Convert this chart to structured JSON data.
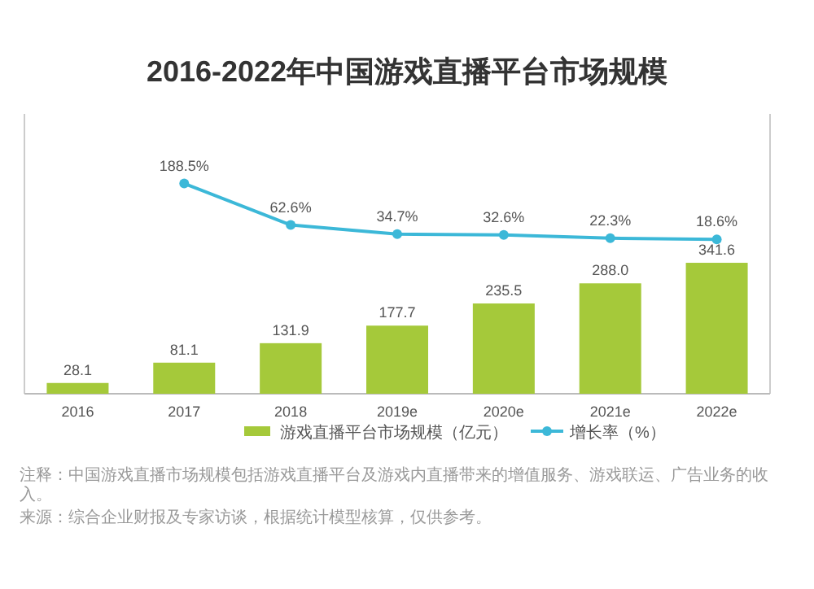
{
  "chart_data": {
    "type": "bar",
    "title": "2016-2022年中国游戏直播平台市场规模",
    "categories": [
      "2016",
      "2017",
      "2018",
      "2019e",
      "2020e",
      "2021e",
      "2022e"
    ],
    "series": [
      {
        "name": "游戏直播平台市场规模（亿元）",
        "color": "#a5c93a",
        "values": [
          28.1,
          81.1,
          131.9,
          177.7,
          235.5,
          288.0,
          341.6
        ],
        "value_labels": [
          "28.1",
          "81.1",
          "131.9",
          "177.7",
          "235.5",
          "288.0",
          "341.6"
        ]
      },
      {
        "name": "增长率（%）",
        "type": "line",
        "axis": "y2",
        "color": "#3cb8d8",
        "marker": "circle",
        "values": [
          null,
          188.5,
          62.6,
          34.7,
          32.6,
          22.3,
          18.6
        ],
        "value_labels": [
          null,
          "188.5%",
          "62.6%",
          "34.7%",
          "32.6%",
          "22.3%",
          "18.6%"
        ]
      }
    ],
    "legend": "bottom",
    "ylim": [
      0,
      730
    ],
    "y2lim": [
      -450,
      400
    ],
    "annotations": [
      "注释：中国游戏直播市场规模包括游戏直播平台及游戏内直播带来的增值服务、游戏联运、广告业务的收入。",
      "来源：综合企业财报及专家访谈，根据统计模型核算，仅供参考。"
    ]
  }
}
